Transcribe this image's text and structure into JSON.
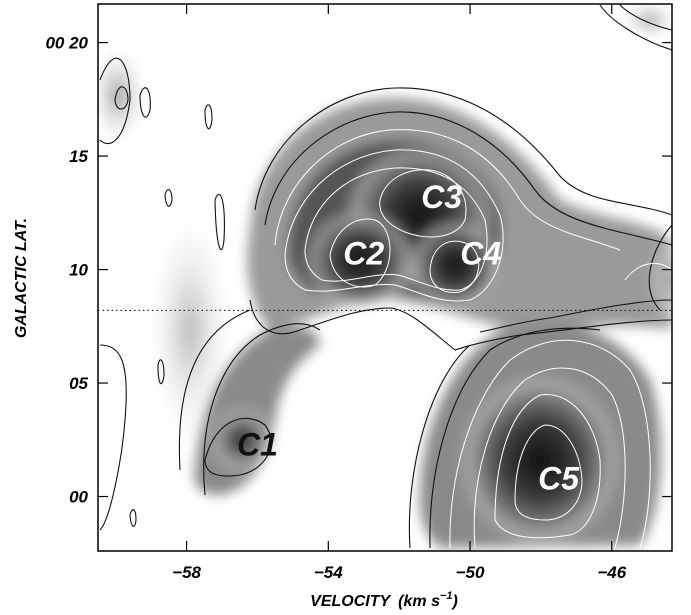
{
  "chart_data": {
    "type": "heatmap",
    "title": "",
    "xlabel_main": "VELOCITY",
    "xlabel_unit": "(km s",
    "xlabel_exp": "−1",
    "xlabel_close": ")",
    "ylabel": "GALACTIC LAT.",
    "x_range": [
      -60.5,
      -44.3
    ],
    "y_range_arcsec": [
      -2.4,
      21.7
    ],
    "x_ticks": [
      {
        "value": -58,
        "label": "−58"
      },
      {
        "value": -54,
        "label": "−54"
      },
      {
        "value": -50,
        "label": "−50"
      },
      {
        "value": -46,
        "label": "−46"
      }
    ],
    "y_ticks": [
      {
        "value": 20,
        "label": "00 20"
      },
      {
        "value": 15,
        "label": "15"
      },
      {
        "value": 10,
        "label": "10"
      },
      {
        "value": 5,
        "label": "05"
      },
      {
        "value": 0,
        "label": "00"
      }
    ],
    "reference_line_lat": 8.2,
    "grid": false,
    "colormap": "grayscale",
    "colors": {
      "low": "#ffffff",
      "high": "#000000",
      "outer_contour": "#111111",
      "inner_contour": "#ffffff"
    },
    "clumps": [
      {
        "name": "C1",
        "velocity": -56.0,
        "lat": 2.3,
        "color": "#111111"
      },
      {
        "name": "C2",
        "velocity": -53.0,
        "lat": 10.7,
        "color": "#ffffff"
      },
      {
        "name": "C3",
        "velocity": -50.8,
        "lat": 13.2,
        "color": "#ffffff"
      },
      {
        "name": "C4",
        "velocity": -49.7,
        "lat": 10.7,
        "color": "#ffffff"
      },
      {
        "name": "C5",
        "velocity": -47.5,
        "lat": 0.8,
        "color": "#ffffff"
      }
    ]
  }
}
